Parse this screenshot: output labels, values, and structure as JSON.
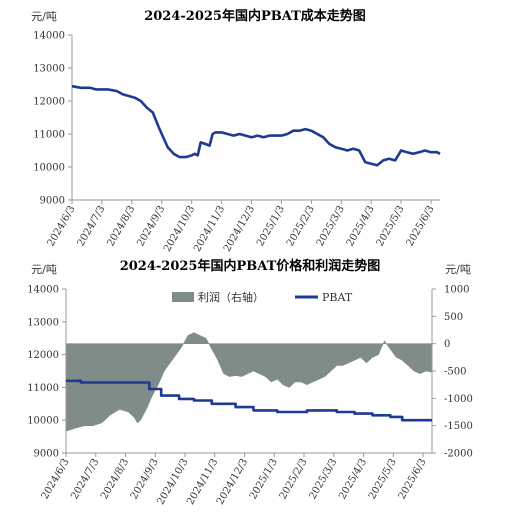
{
  "chart_data": [
    {
      "type": "line",
      "title": "2024-2025年国内PBAT成本走势图",
      "ylabel": "元/吨",
      "ylim": [
        9000,
        14000
      ],
      "yticks": [
        9000,
        10000,
        11000,
        12000,
        13000,
        14000
      ],
      "xticks": [
        "2024/6/3",
        "2024/7/3",
        "2024/8/3",
        "2024/9/3",
        "2024/10/3",
        "2024/11/3",
        "2024/12/3",
        "2025/1/3",
        "2025/2/3",
        "2025/3/3",
        "2025/4/3",
        "2025/5/3",
        "2025/6/3"
      ],
      "x_range": [
        0,
        12.3
      ],
      "series": [
        {
          "color": "#1f3a93",
          "x": [
            0,
            0.3,
            0.6,
            0.8,
            1.0,
            1.2,
            1.5,
            1.7,
            1.9,
            2.1,
            2.3,
            2.5,
            2.7,
            2.9,
            3.1,
            3.2,
            3.4,
            3.6,
            3.8,
            4.0,
            4.1,
            4.2,
            4.3,
            4.45,
            4.6,
            4.7,
            4.8,
            5.0,
            5.2,
            5.4,
            5.6,
            5.8,
            6.0,
            6.2,
            6.4,
            6.6,
            6.8,
            7.0,
            7.2,
            7.4,
            7.6,
            7.8,
            8.0,
            8.2,
            8.4,
            8.6,
            8.8,
            9.0,
            9.2,
            9.4,
            9.6,
            9.8,
            10.0,
            10.2,
            10.4,
            10.6,
            10.8,
            11.0,
            11.2,
            11.4,
            11.6,
            11.8,
            12.0,
            12.1,
            12.2,
            12.3
          ],
          "y": [
            12450,
            12400,
            12400,
            12350,
            12350,
            12350,
            12300,
            12200,
            12150,
            12100,
            12000,
            11800,
            11650,
            11200,
            10800,
            10600,
            10400,
            10300,
            10300,
            10350,
            10400,
            10350,
            10750,
            10700,
            10650,
            11000,
            11050,
            11050,
            11000,
            10950,
            11000,
            10950,
            10900,
            10950,
            10900,
            10950,
            10950,
            10950,
            11000,
            11100,
            11100,
            11150,
            11100,
            11000,
            10900,
            10700,
            10600,
            10550,
            10500,
            10550,
            10500,
            10150,
            10100,
            10050,
            10200,
            10250,
            10200,
            10500,
            10450,
            10400,
            10450,
            10500,
            10450,
            10450,
            10450,
            10400
          ]
        }
      ]
    },
    {
      "type": "line+area",
      "title": "2024-2025年国内PBAT价格和利润走势图",
      "ylabel_left": "元/吨",
      "ylabel_right": "元/吨",
      "ylim_left": [
        9000,
        14000
      ],
      "ylim_right": [
        -2000,
        1000
      ],
      "yticks_left": [
        9000,
        10000,
        11000,
        12000,
        13000,
        14000
      ],
      "yticks_right": [
        -2000,
        -1500,
        -1000,
        -500,
        0,
        500,
        1000
      ],
      "xticks": [
        "2024/6/3",
        "2024/7/3",
        "2024/8/3",
        "2024/9/3",
        "2024/10/3",
        "2024/11/3",
        "2024/12/3",
        "2025/1/3",
        "2025/2/3",
        "2025/3/3",
        "2025/4/3",
        "2025/5/3",
        "2025/6/3"
      ],
      "x_range": [
        0,
        12.3
      ],
      "legend": [
        "利润（右轴）",
        "PBAT"
      ],
      "series": [
        {
          "name": "利润（右轴）",
          "axis": "right",
          "kind": "area",
          "color": "#7f8c8a",
          "x": [
            0,
            0.3,
            0.6,
            0.9,
            1.2,
            1.5,
            1.8,
            2.1,
            2.3,
            2.4,
            2.5,
            2.7,
            2.9,
            3.1,
            3.3,
            3.5,
            3.7,
            3.9,
            4.1,
            4.3,
            4.5,
            4.7,
            4.9,
            5.1,
            5.3,
            5.5,
            5.7,
            5.9,
            6.1,
            6.3,
            6.5,
            6.7,
            6.9,
            7.1,
            7.3,
            7.5,
            7.7,
            7.9,
            8.1,
            8.3,
            8.5,
            8.7,
            8.9,
            9.1,
            9.3,
            9.5,
            9.7,
            9.9,
            10.1,
            10.3,
            10.5,
            10.7,
            10.9,
            11.1,
            11.3,
            11.5,
            11.7,
            11.9,
            12.1,
            12.3
          ],
          "y": [
            -1600,
            -1550,
            -1500,
            -1500,
            -1450,
            -1300,
            -1200,
            -1250,
            -1350,
            -1450,
            -1400,
            -1200,
            -950,
            -750,
            -500,
            -350,
            -200,
            -50,
            150,
            200,
            150,
            100,
            -100,
            -300,
            -550,
            -600,
            -580,
            -600,
            -550,
            -500,
            -550,
            -600,
            -700,
            -650,
            -750,
            -800,
            -700,
            -700,
            -750,
            -700,
            -650,
            -600,
            -500,
            -400,
            -400,
            -350,
            -300,
            -250,
            -350,
            -250,
            -200,
            50,
            -100,
            -250,
            -300,
            -400,
            -500,
            -550,
            -500,
            -520
          ]
        },
        {
          "name": "PBAT",
          "axis": "left",
          "kind": "line",
          "color": "#1f3a93",
          "x": [
            0,
            0.5,
            0.5,
            2.1,
            2.1,
            2.8,
            2.8,
            3.2,
            3.2,
            3.8,
            3.8,
            4.3,
            4.3,
            4.9,
            4.9,
            5.7,
            5.7,
            6.3,
            6.3,
            7.1,
            7.1,
            8.1,
            8.1,
            9.1,
            9.1,
            9.7,
            9.7,
            10.3,
            10.3,
            10.9,
            10.9,
            11.3,
            11.3,
            12.3
          ],
          "y": [
            11200,
            11200,
            11150,
            11150,
            11150,
            11150,
            10950,
            10950,
            10750,
            10750,
            10650,
            10650,
            10600,
            10600,
            10500,
            10500,
            10400,
            10400,
            10300,
            10300,
            10250,
            10250,
            10300,
            10300,
            10250,
            10250,
            10200,
            10200,
            10150,
            10150,
            10100,
            10100,
            10000,
            10000
          ]
        }
      ]
    }
  ]
}
